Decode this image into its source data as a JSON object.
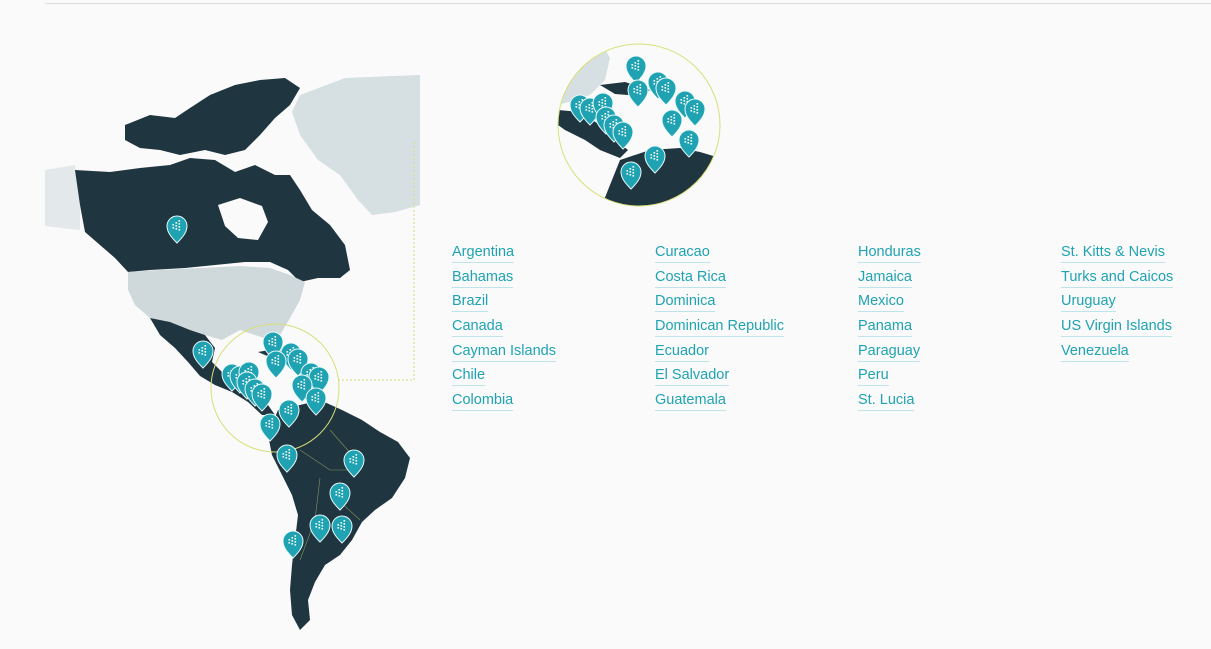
{
  "colors": {
    "land_dark": "#1f3540",
    "land_light": "#d6dfe1",
    "marker": "#1fa3b3",
    "highlight_circle": "#d8df7a",
    "link": "#1fa3b3"
  },
  "map": {
    "icon": "location-pin-icon",
    "zoom_icon": "zoom-circle"
  },
  "countries": {
    "col1": [
      "Argentina",
      "Bahamas",
      "Brazil",
      "Canada",
      "Cayman Islands",
      "Chile",
      "Colombia"
    ],
    "col2": [
      "Curacao",
      "Costa Rica",
      "Dominica",
      "Dominican Republic",
      "Ecuador",
      "El Salvador",
      "Guatemala"
    ],
    "col3": [
      "Honduras",
      "Jamaica",
      "Mexico",
      "Panama",
      "Paraguay",
      "Peru",
      "St. Lucia"
    ],
    "col4": [
      "St. Kitts & Nevis",
      "Turks and Caicos",
      "Uruguay",
      "US Virgin Islands",
      "Venezuela"
    ]
  }
}
